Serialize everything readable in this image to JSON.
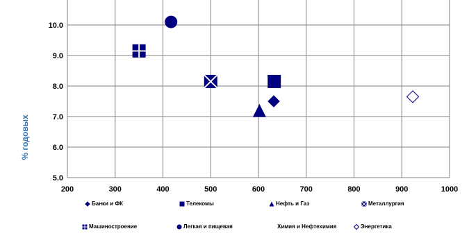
{
  "chart_data": {
    "type": "scatter",
    "title": "",
    "xlabel": "",
    "ylabel": "% годовых",
    "xlim": [
      200,
      1000
    ],
    "ylim": [
      5.0,
      11.0
    ],
    "x_ticks": [
      "200",
      "300",
      "400",
      "500",
      "600",
      "700",
      "800",
      "900",
      "1000"
    ],
    "y_ticks": [
      "5.0",
      "6.0",
      "7.0",
      "8.0",
      "9.0",
      "10.0"
    ],
    "grid": true,
    "legend_position": "bottom",
    "series": [
      {
        "name": "Банки и ФК",
        "marker": "diamond",
        "color": "#000080",
        "points": [
          {
            "x": 632,
            "y": 7.5
          }
        ]
      },
      {
        "name": "Телекомы",
        "marker": "square",
        "color": "#000080",
        "points": [
          {
            "x": 633,
            "y": 8.15
          }
        ]
      },
      {
        "name": "Нефть и Газ",
        "marker": "triangle",
        "color": "#000080",
        "points": [
          {
            "x": 602,
            "y": 7.2
          }
        ]
      },
      {
        "name": "Металлургия",
        "marker": "square-x",
        "color": "#000080",
        "points": [
          {
            "x": 500,
            "y": 8.15
          }
        ]
      },
      {
        "name": "Машиностроение",
        "marker": "square-cross",
        "color": "#000080",
        "points": [
          {
            "x": 350,
            "y": 9.15
          }
        ]
      },
      {
        "name": "Легкая и пищевая",
        "marker": "circle",
        "color": "#000080",
        "points": [
          {
            "x": 417,
            "y": 10.1
          }
        ]
      },
      {
        "name": "Химия и Нефтехимия",
        "marker": "none",
        "color": "#000080",
        "points": []
      },
      {
        "name": "Энергетика",
        "marker": "diamond-open",
        "color": "#000080",
        "points": [
          {
            "x": 923,
            "y": 7.65
          }
        ]
      }
    ]
  }
}
